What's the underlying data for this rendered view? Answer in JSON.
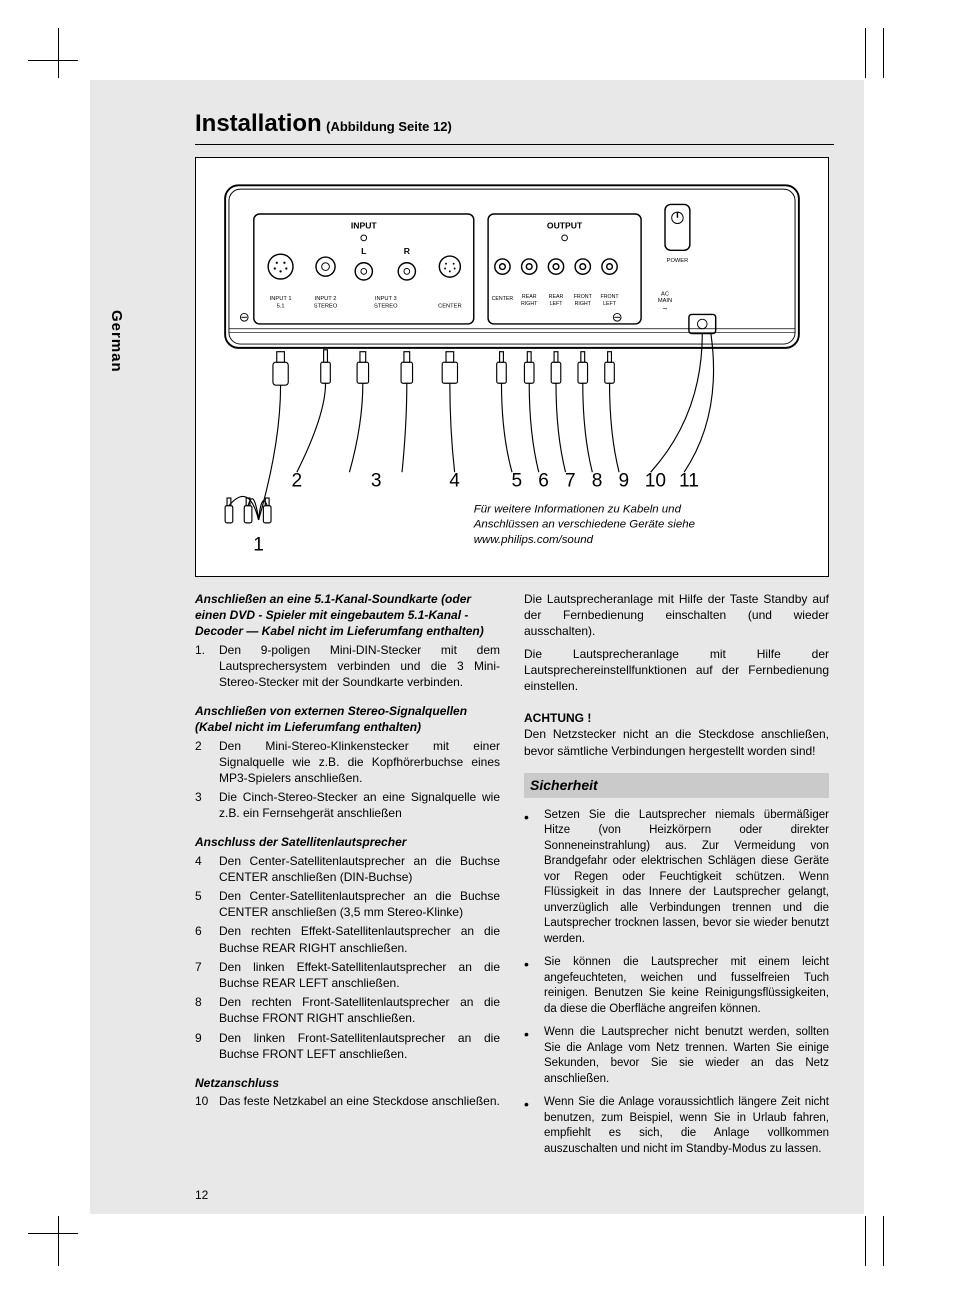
{
  "page_number": "12",
  "side_label": "German",
  "header": {
    "title": "Installation",
    "subtitle": "(Abbildung Seite 12)"
  },
  "diagram": {
    "panel_labels": {
      "input": "INPUT",
      "output": "OUTPUT",
      "power": "POWER",
      "input1": "INPUT 1\n5.1",
      "input2": "INPUT 2\nSTEREO",
      "l": "L",
      "r": "R",
      "input3": "INPUT 3\nSTEREO",
      "center_in": "CENTER",
      "center_out": "CENTER",
      "rear_right": "REAR\nRIGHT",
      "rear_left": "REAR\nLEFT",
      "front_right": "FRONT\nRIGHT",
      "front_left": "FRONT\nLEFT",
      "ac_main": "AC\nMAIN"
    },
    "callout_numbers": [
      "1",
      "2",
      "3",
      "4",
      "5",
      "6",
      "7",
      "8",
      "9",
      "10",
      "11"
    ],
    "note": "Für weitere Informationen zu Kabeln und Anschlüssen an verschiedene Geräte siehe www.philips.com/sound"
  },
  "left_column": {
    "sec1_title": "Anschließen an eine 5.1-Kanal-Soundkarte (oder einen DVD - Spieler mit eingebautem 5.1-Kanal - Decoder — Kabel nicht im Lieferumfang enthalten)",
    "sec1_items": [
      {
        "n": "1.",
        "t": "Den 9-poligen Mini-DIN-Stecker mit dem Lautsprechersystem verbinden und die 3 Mini-Stereo-Stecker mit der Soundkarte verbinden."
      }
    ],
    "sec2_title": "Anschließen von externen Stereo-Signalquellen (Kabel nicht im Lieferumfang enthalten)",
    "sec2_items": [
      {
        "n": "2",
        "t": "Den Mini-Stereo-Klinkenstecker mit einer Signalquelle wie z.B. die Kopfhörerbuchse eines MP3-Spielers anschließen."
      },
      {
        "n": "3",
        "t": "Die Cinch-Stereo-Stecker an eine Signalquelle wie z.B. ein Fernsehgerät anschließen"
      }
    ],
    "sec3_title": "Anschluss der Satellitenlautsprecher",
    "sec3_items": [
      {
        "n": "4",
        "t": "Den Center-Satellitenlautsprecher an die Buchse CENTER anschließen (DIN-Buchse)"
      },
      {
        "n": "5",
        "t": "Den Center-Satellitenlautsprecher an die Buchse CENTER anschließen (3,5 mm Stereo-Klinke)"
      },
      {
        "n": "6",
        "t": "Den rechten Effekt-Satellitenlautsprecher an die Buchse REAR RIGHT anschließen."
      },
      {
        "n": "7",
        "t": "Den linken Effekt-Satellitenlautsprecher an die Buchse REAR LEFT anschließen."
      },
      {
        "n": "8",
        "t": "Den rechten Front-Satellitenlautsprecher an die Buchse FRONT RIGHT anschließen."
      },
      {
        "n": "9",
        "t": "Den linken Front-Satellitenlautsprecher an die Buchse FRONT LEFT anschließen."
      }
    ],
    "sec4_title": "Netzanschluss",
    "sec4_items": [
      {
        "n": "10",
        "t": "Das feste Netzkabel an eine Steckdose anschließen."
      }
    ]
  },
  "right_column": {
    "para1": "Die Lautsprecheranlage mit Hilfe der Taste Standby auf der Fernbedienung einschalten (und wieder ausschalten).",
    "para2": "Die Lautsprecheranlage mit Hilfe der Lautsprechereinstellfunktionen auf der Fernbedienung einstellen.",
    "achtung_title": "ACHTUNG !",
    "achtung_text": "Den Netzstecker nicht an die Steckdose anschließen, bevor sämtliche Verbindungen hergestellt worden sind!",
    "sicherheit_title": "Sicherheit",
    "bullets": [
      "Setzen Sie die Lautsprecher niemals übermäßiger Hitze (von Heizkörpern oder direkter Sonneneinstrahlung) aus. Zur Vermeidung von Brandgefahr oder elektrischen Schlägen diese Geräte vor Regen oder Feuchtigkeit schützen. Wenn Flüssigkeit in das Innere der Lautsprecher gelangt, unverzüglich alle Verbindungen trennen und die Lautsprecher trocknen lassen, bevor sie wieder benutzt werden.",
      "Sie können die Lautsprecher mit einem leicht angefeuchteten, weichen und fusselfreien Tuch reinigen. Benutzen Sie keine Reinigungsflüssigkeiten, da diese die Oberfläche angreifen können.",
      "Wenn die Lautsprecher nicht benutzt werden, sollten Sie die Anlage vom Netz trennen. Warten Sie einige Sekunden, bevor Sie sie wieder an das Netz anschließen.",
      "Wenn Sie die Anlage voraussichtlich längere Zeit nicht benutzen, zum Beispiel, wenn Sie in Urlaub fahren, empfiehlt es sich, die Anlage vollkommen auszuschalten und nicht im Standby-Modus zu lassen."
    ]
  },
  "colors": {
    "page_bg": "#e8e8e8",
    "bar_bg": "#cacaca",
    "text": "#000000",
    "white": "#ffffff"
  }
}
